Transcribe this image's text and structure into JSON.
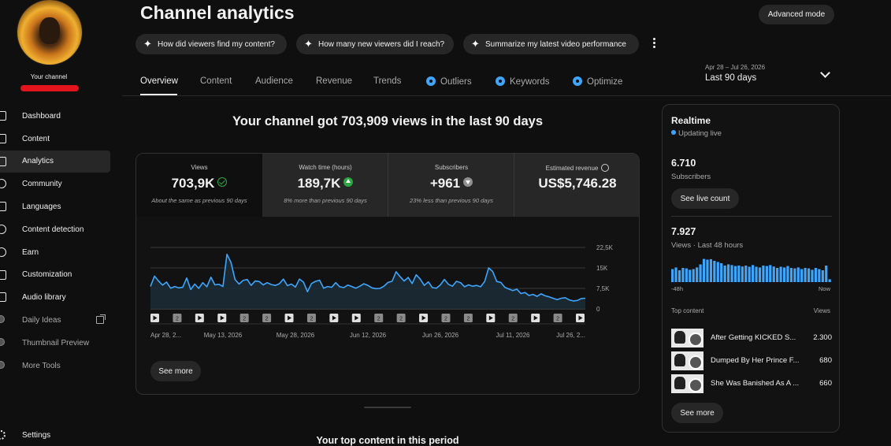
{
  "sidebar": {
    "channel_label": "Your channel",
    "items": [
      {
        "label": "Dashboard",
        "icon": "dashboard-icon"
      },
      {
        "label": "Content",
        "icon": "content-icon"
      },
      {
        "label": "Analytics",
        "icon": "analytics-icon",
        "active": true
      },
      {
        "label": "Community",
        "icon": "community-icon"
      },
      {
        "label": "Languages",
        "icon": "languages-icon"
      },
      {
        "label": "Content detection",
        "icon": "content-detection-icon"
      },
      {
        "label": "Earn",
        "icon": "earn-icon"
      },
      {
        "label": "Customization",
        "icon": "customization-icon"
      },
      {
        "label": "Audio library",
        "icon": "audio-library-icon"
      },
      {
        "label": "Daily Ideas",
        "icon": "daily-ideas-icon",
        "external": true
      },
      {
        "label": "Thumbnail Preview",
        "icon": "thumbnail-preview-icon"
      },
      {
        "label": "More Tools",
        "icon": "more-tools-icon"
      }
    ],
    "settings_label": "Settings"
  },
  "header": {
    "title": "Channel analytics",
    "advanced_mode": "Advanced mode",
    "chips": [
      "How did viewers find my content?",
      "How many new viewers did I reach?",
      "Summarize my latest video performance"
    ],
    "tabs": [
      "Overview",
      "Content",
      "Audience",
      "Revenue",
      "Trends",
      "Outliers",
      "Keywords",
      "Optimize"
    ],
    "active_tab": "Overview",
    "date_range": {
      "range": "Apr 28 – Jul 26, 2026",
      "label": "Last 90 days"
    }
  },
  "main": {
    "headline": "Your channel got 703,909 views in the last 90 days",
    "metrics": [
      {
        "label": "Views",
        "value": "703,9K",
        "note": "About the same as previous 90 days",
        "indicator": "check",
        "selected": true
      },
      {
        "label": "Watch time (hours)",
        "value": "189,7K",
        "note": "8% more than previous 90 days",
        "indicator": "up"
      },
      {
        "label": "Subscribers",
        "value": "+961",
        "note": "23% less than previous 90 days",
        "indicator": "down"
      },
      {
        "label": "Estimated revenue",
        "value": "US$5,746.28",
        "note": "",
        "indicator": "clock"
      }
    ],
    "see_more": "See more",
    "bottom_heading": "Your top content in this period"
  },
  "chart_data": {
    "type": "area",
    "title": "",
    "y_ticks": [
      "22,5K",
      "15K",
      "7,5K",
      "0"
    ],
    "ylim": [
      0,
      22500
    ],
    "x_ticks": [
      "Apr 28, 2...",
      "May 13, 2026",
      "May 28, 2026",
      "Jun 12, 2026",
      "Jun 26, 2026",
      "Jul 11, 2026",
      "Jul 26, 2..."
    ],
    "values": [
      8200,
      12000,
      10200,
      8700,
      9800,
      7600,
      8200,
      7700,
      7900,
      11300,
      7100,
      9100,
      7500,
      9600,
      8100,
      11600,
      8800,
      9000,
      8200,
      20000,
      17000,
      10800,
      9100,
      10400,
      10800,
      8600,
      10200,
      10000,
      8800,
      9600,
      8900,
      8600,
      9200,
      10900,
      8500,
      9100,
      8000,
      10900,
      9800,
      6300,
      9300,
      10100,
      10500,
      7600,
      8200,
      7900,
      9600,
      8100,
      7800,
      8700,
      8200,
      7600,
      8300,
      9200,
      8600,
      7700,
      7400,
      7500,
      8300,
      9700,
      10100,
      13600,
      11800,
      10200,
      11500,
      9300,
      12500,
      10900,
      8600,
      9900,
      7800,
      7600,
      8800,
      10800,
      9000,
      8300,
      10100,
      9600,
      8100,
      8800,
      8300,
      8600,
      8100,
      10000,
      15000,
      13700,
      10000,
      9700,
      7900,
      7300,
      6700,
      7200,
      5600,
      6000,
      4900,
      5300,
      4600,
      5500,
      4800,
      4400,
      3900,
      3400,
      3900,
      4100,
      3300,
      2900,
      3100,
      3800,
      3900
    ],
    "markers": [
      "play",
      "badge",
      "play",
      "play",
      "badge",
      "badge",
      "play",
      "badge",
      "play",
      "play",
      "badge",
      "badge",
      "play",
      "badge",
      "badge",
      "play",
      "badge",
      "play",
      "badge",
      "play"
    ],
    "grid": true,
    "line_color": "#3ea6ff"
  },
  "realtime": {
    "title": "Realtime",
    "status": "Updating live",
    "subscribers_value": "6.710",
    "subscribers_label": "Subscribers",
    "see_live_count": "See live count",
    "views_value": "7.927",
    "views_label": "Views · Last 48 hours",
    "axis_left": "-48h",
    "axis_right": "Now",
    "bars": [
      0.55,
      0.62,
      0.5,
      0.6,
      0.58,
      0.52,
      0.55,
      0.62,
      0.75,
      0.98,
      0.95,
      0.97,
      0.9,
      0.85,
      0.8,
      0.7,
      0.75,
      0.72,
      0.68,
      0.7,
      0.66,
      0.7,
      0.65,
      0.72,
      0.65,
      0.62,
      0.7,
      0.68,
      0.72,
      0.66,
      0.6,
      0.65,
      0.62,
      0.68,
      0.6,
      0.58,
      0.62,
      0.55,
      0.6,
      0.58,
      0.52,
      0.6,
      0.55,
      0.5,
      0.7,
      0.12
    ],
    "top_content_label": "Top content",
    "views_col_label": "Views",
    "top_content": [
      {
        "title": "After Getting KICKED S...",
        "views": "2.300"
      },
      {
        "title": "Dumped By Her Prince F...",
        "views": "680"
      },
      {
        "title": "She Was Banished As A ...",
        "views": "660"
      }
    ],
    "see_more": "See more"
  }
}
